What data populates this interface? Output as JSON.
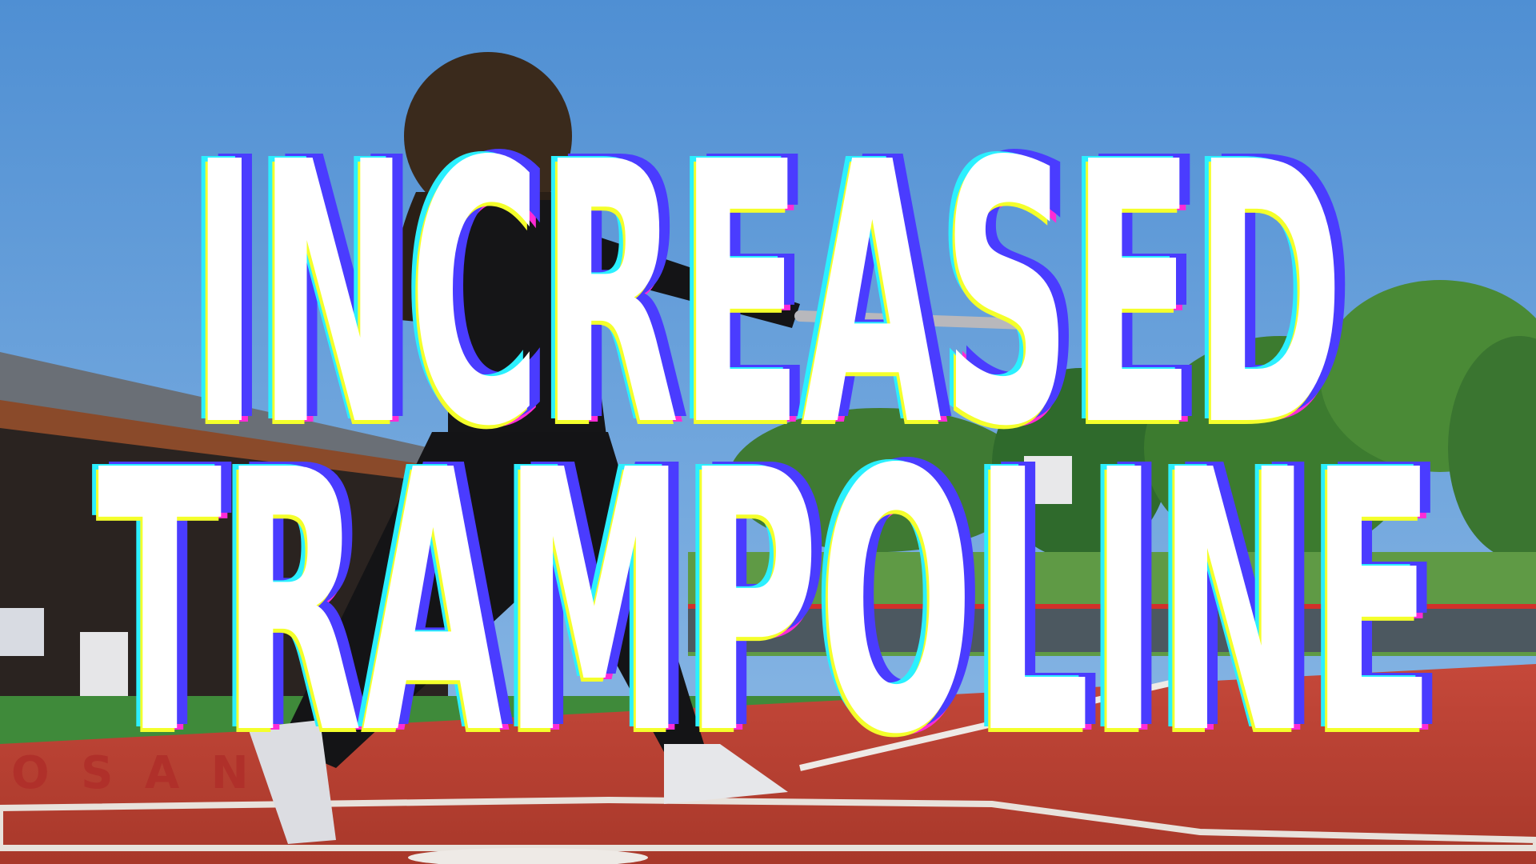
{
  "overlay": {
    "line1": "INCREASED",
    "line2": "TRAMPOLINE"
  },
  "colors": {
    "text": "#ffffff",
    "glitch_magenta": "#ff2bd6",
    "glitch_cyan": "#2bf0ff",
    "glitch_yellow": "#f4ff2b",
    "glitch_blue": "#4a3cff",
    "sky": "#5b97d6",
    "field_clay": "#b8402f",
    "turf": "#3f8a3a"
  },
  "scene": {
    "dugout_lettering": "O S A N"
  }
}
